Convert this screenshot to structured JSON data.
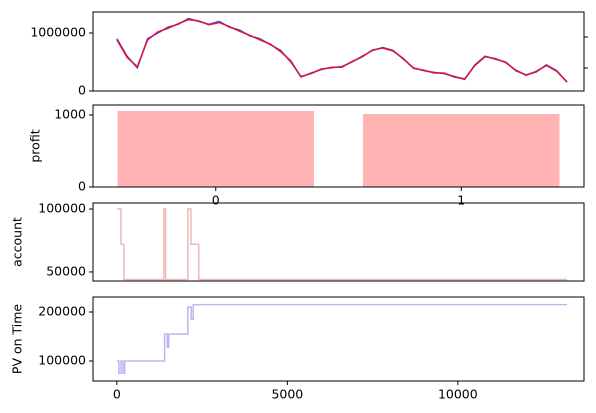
{
  "chart_data": [
    {
      "type": "line",
      "x": [
        0,
        300,
        600,
        900,
        1200,
        1500,
        1800,
        2100,
        2400,
        2700,
        3000,
        3300,
        3600,
        3900,
        4200,
        4500,
        4800,
        5100,
        5400,
        5700,
        6000,
        6300,
        6600,
        6900,
        7200,
        7500,
        7800,
        8100,
        8400,
        8700,
        9000,
        9300,
        9600,
        9900,
        10200,
        10500,
        10800,
        11100,
        11400,
        11700,
        12000,
        12300,
        12600,
        12900,
        13200
      ],
      "series": [
        {
          "color": "#3b22d6",
          "values": [
            900000,
            600000,
            400000,
            900000,
            1000000,
            1100000,
            1150000,
            1250000,
            1200000,
            1150000,
            1200000,
            1100000,
            1050000,
            950000,
            900000,
            800000,
            700000,
            500000,
            250000,
            300000,
            380000,
            400000,
            420000,
            500000,
            600000,
            700000,
            750000,
            700000,
            550000,
            400000,
            350000,
            320000,
            300000,
            250000,
            200000,
            450000,
            600000,
            550000,
            500000,
            350000,
            280000,
            330000,
            450000,
            350000,
            150000
          ]
        },
        {
          "color": "#e8102a",
          "values": [
            880000,
            580000,
            420000,
            880000,
            1020000,
            1080000,
            1160000,
            1230000,
            1210000,
            1140000,
            1180000,
            1110000,
            1030000,
            960000,
            880000,
            810000,
            680000,
            520000,
            240000,
            310000,
            370000,
            410000,
            410000,
            510000,
            590000,
            710000,
            740000,
            690000,
            560000,
            390000,
            360000,
            310000,
            310000,
            240000,
            210000,
            440000,
            590000,
            560000,
            490000,
            360000,
            270000,
            340000,
            440000,
            340000,
            160000
          ]
        }
      ],
      "xlim": [
        -700,
        13700
      ],
      "ylim": [
        0,
        1362000
      ],
      "yticks": [
        0,
        1000000
      ]
    },
    {
      "type": "bar",
      "ylabel": "profit",
      "x": [
        0,
        1
      ],
      "values": [
        1056,
        1014
      ],
      "color": "#ffb3b3",
      "xlim": [
        -0.5,
        1.5
      ],
      "xticks": [
        0,
        1
      ],
      "ylim": [
        0,
        1139
      ],
      "yticks": [
        0,
        1000
      ]
    },
    {
      "type": "line",
      "ylabel": "account",
      "x": [
        0,
        117,
        117,
        205,
        205,
        1380,
        1380,
        1430,
        1430,
        2080,
        2080,
        2170,
        2170,
        2400,
        2400,
        13200
      ],
      "series": [
        {
          "color": "#f0b0b0",
          "values": [
            100000,
            100000,
            72000,
            72000,
            44000,
            44000,
            100000,
            100000,
            44000,
            44000,
            100000,
            100000,
            72000,
            72000,
            44000,
            44000
          ]
        }
      ],
      "xlim": [
        -700,
        13700
      ],
      "ylim": [
        42800,
        104800
      ],
      "yticks": [
        50000,
        100000
      ]
    },
    {
      "type": "line",
      "ylabel": "PV on Time",
      "x": [
        0,
        60,
        60,
        120,
        120,
        180,
        180,
        230,
        230,
        1400,
        1400,
        1480,
        1480,
        1520,
        1520,
        2080,
        2080,
        2180,
        2180,
        2240,
        2240,
        13200
      ],
      "series": [
        {
          "color": "#b0b0ee",
          "values": [
            100000,
            100000,
            75000,
            75000,
            100000,
            100000,
            75000,
            75000,
            100000,
            100000,
            155000,
            155000,
            128000,
            128000,
            155000,
            155000,
            210000,
            210000,
            185000,
            185000,
            215000,
            215000
          ]
        }
      ],
      "xlim": [
        -700,
        13700
      ],
      "xticks": [
        0,
        5000,
        10000
      ],
      "ylim": [
        59184,
        230612
      ],
      "yticks": [
        100000,
        200000
      ]
    }
  ]
}
